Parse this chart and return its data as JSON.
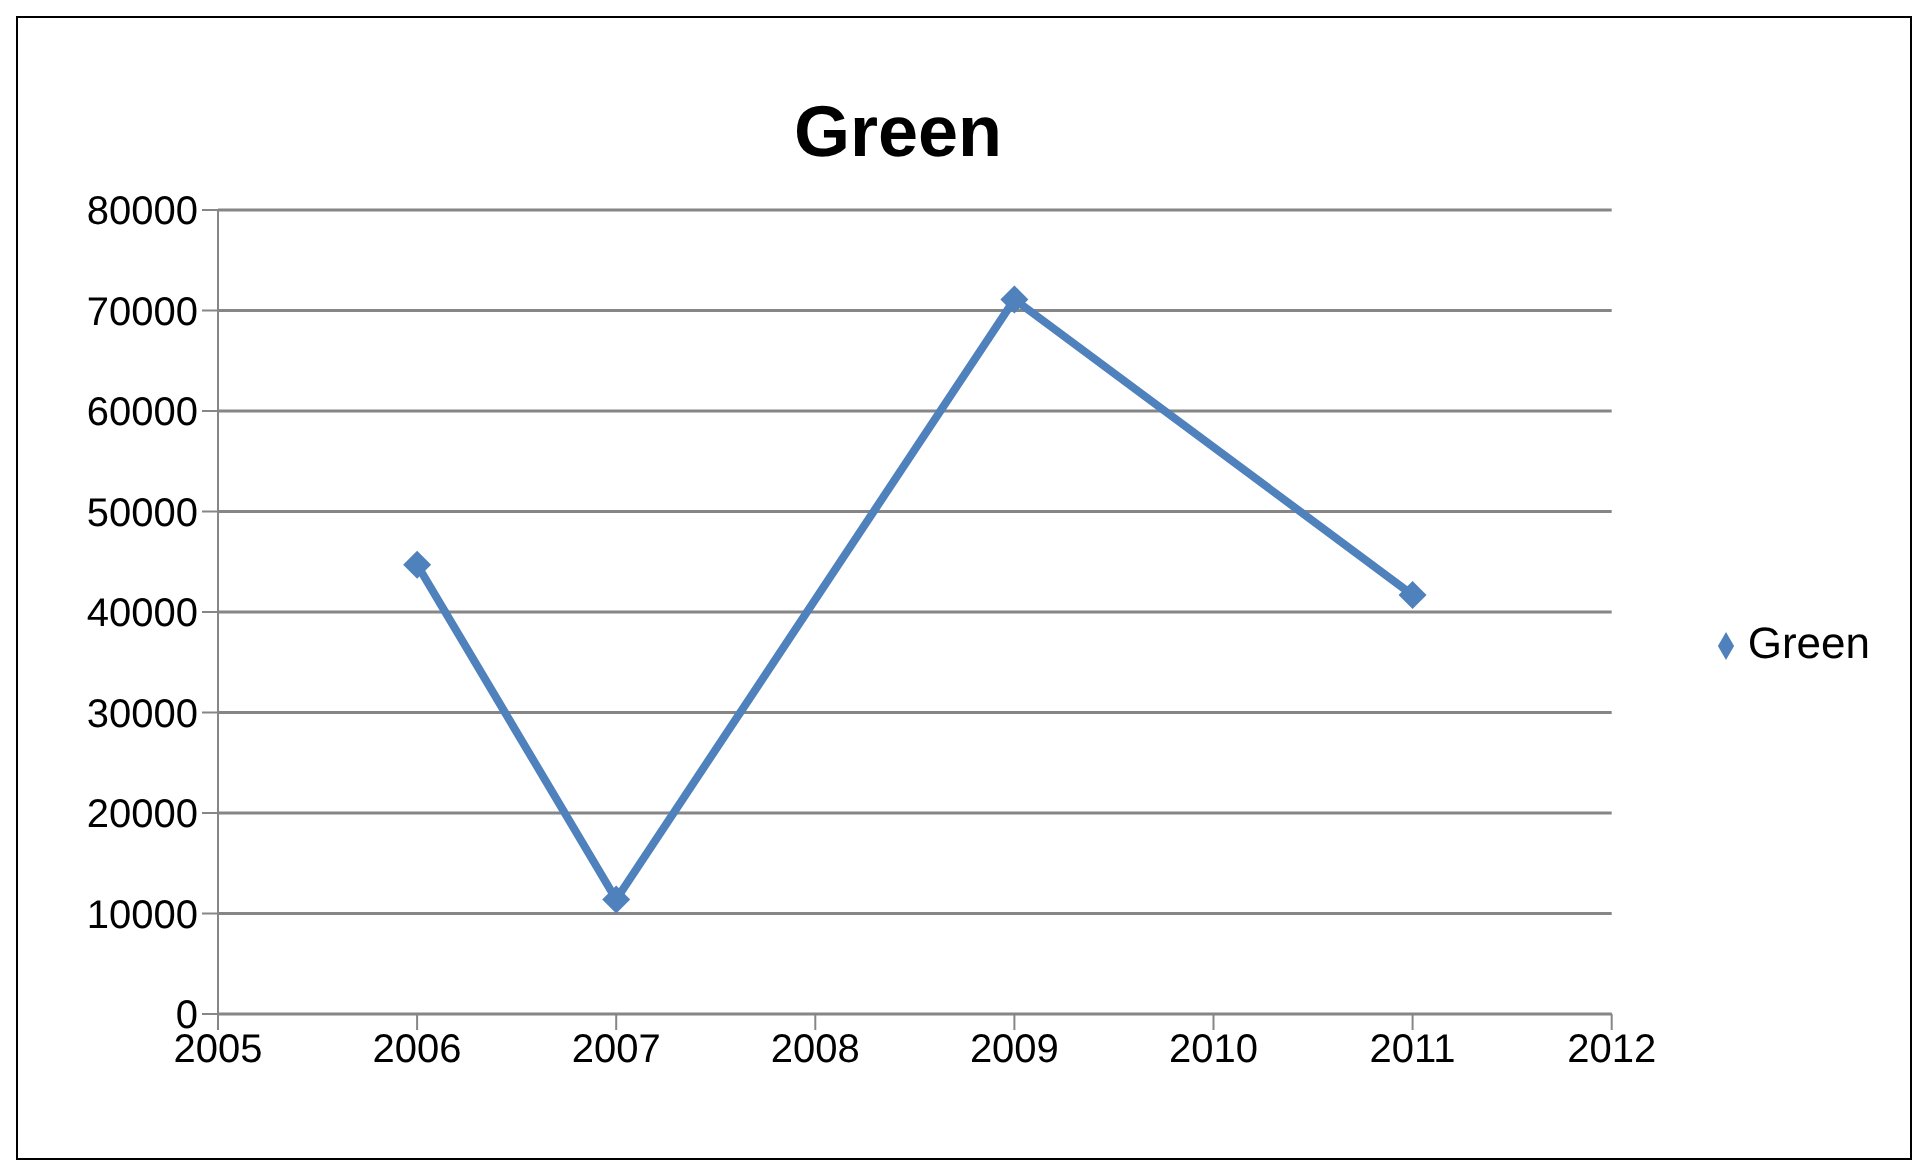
{
  "chart_data": {
    "type": "line",
    "title": "Green",
    "x": [
      2006,
      2007,
      2009,
      2011
    ],
    "series": [
      {
        "name": "Green",
        "color": "#4f81bd",
        "values": [
          44700,
          11400,
          71100,
          41700
        ]
      }
    ],
    "xlim": [
      2005,
      2012
    ],
    "xticks": [
      2005,
      2006,
      2007,
      2008,
      2009,
      2010,
      2011,
      2012
    ],
    "ylim": [
      0,
      80000
    ],
    "yticks": [
      0,
      10000,
      20000,
      30000,
      40000,
      50000,
      60000,
      70000,
      80000
    ],
    "grid": "y",
    "legend": "right",
    "marker": "diamond",
    "line_style": "solid"
  }
}
